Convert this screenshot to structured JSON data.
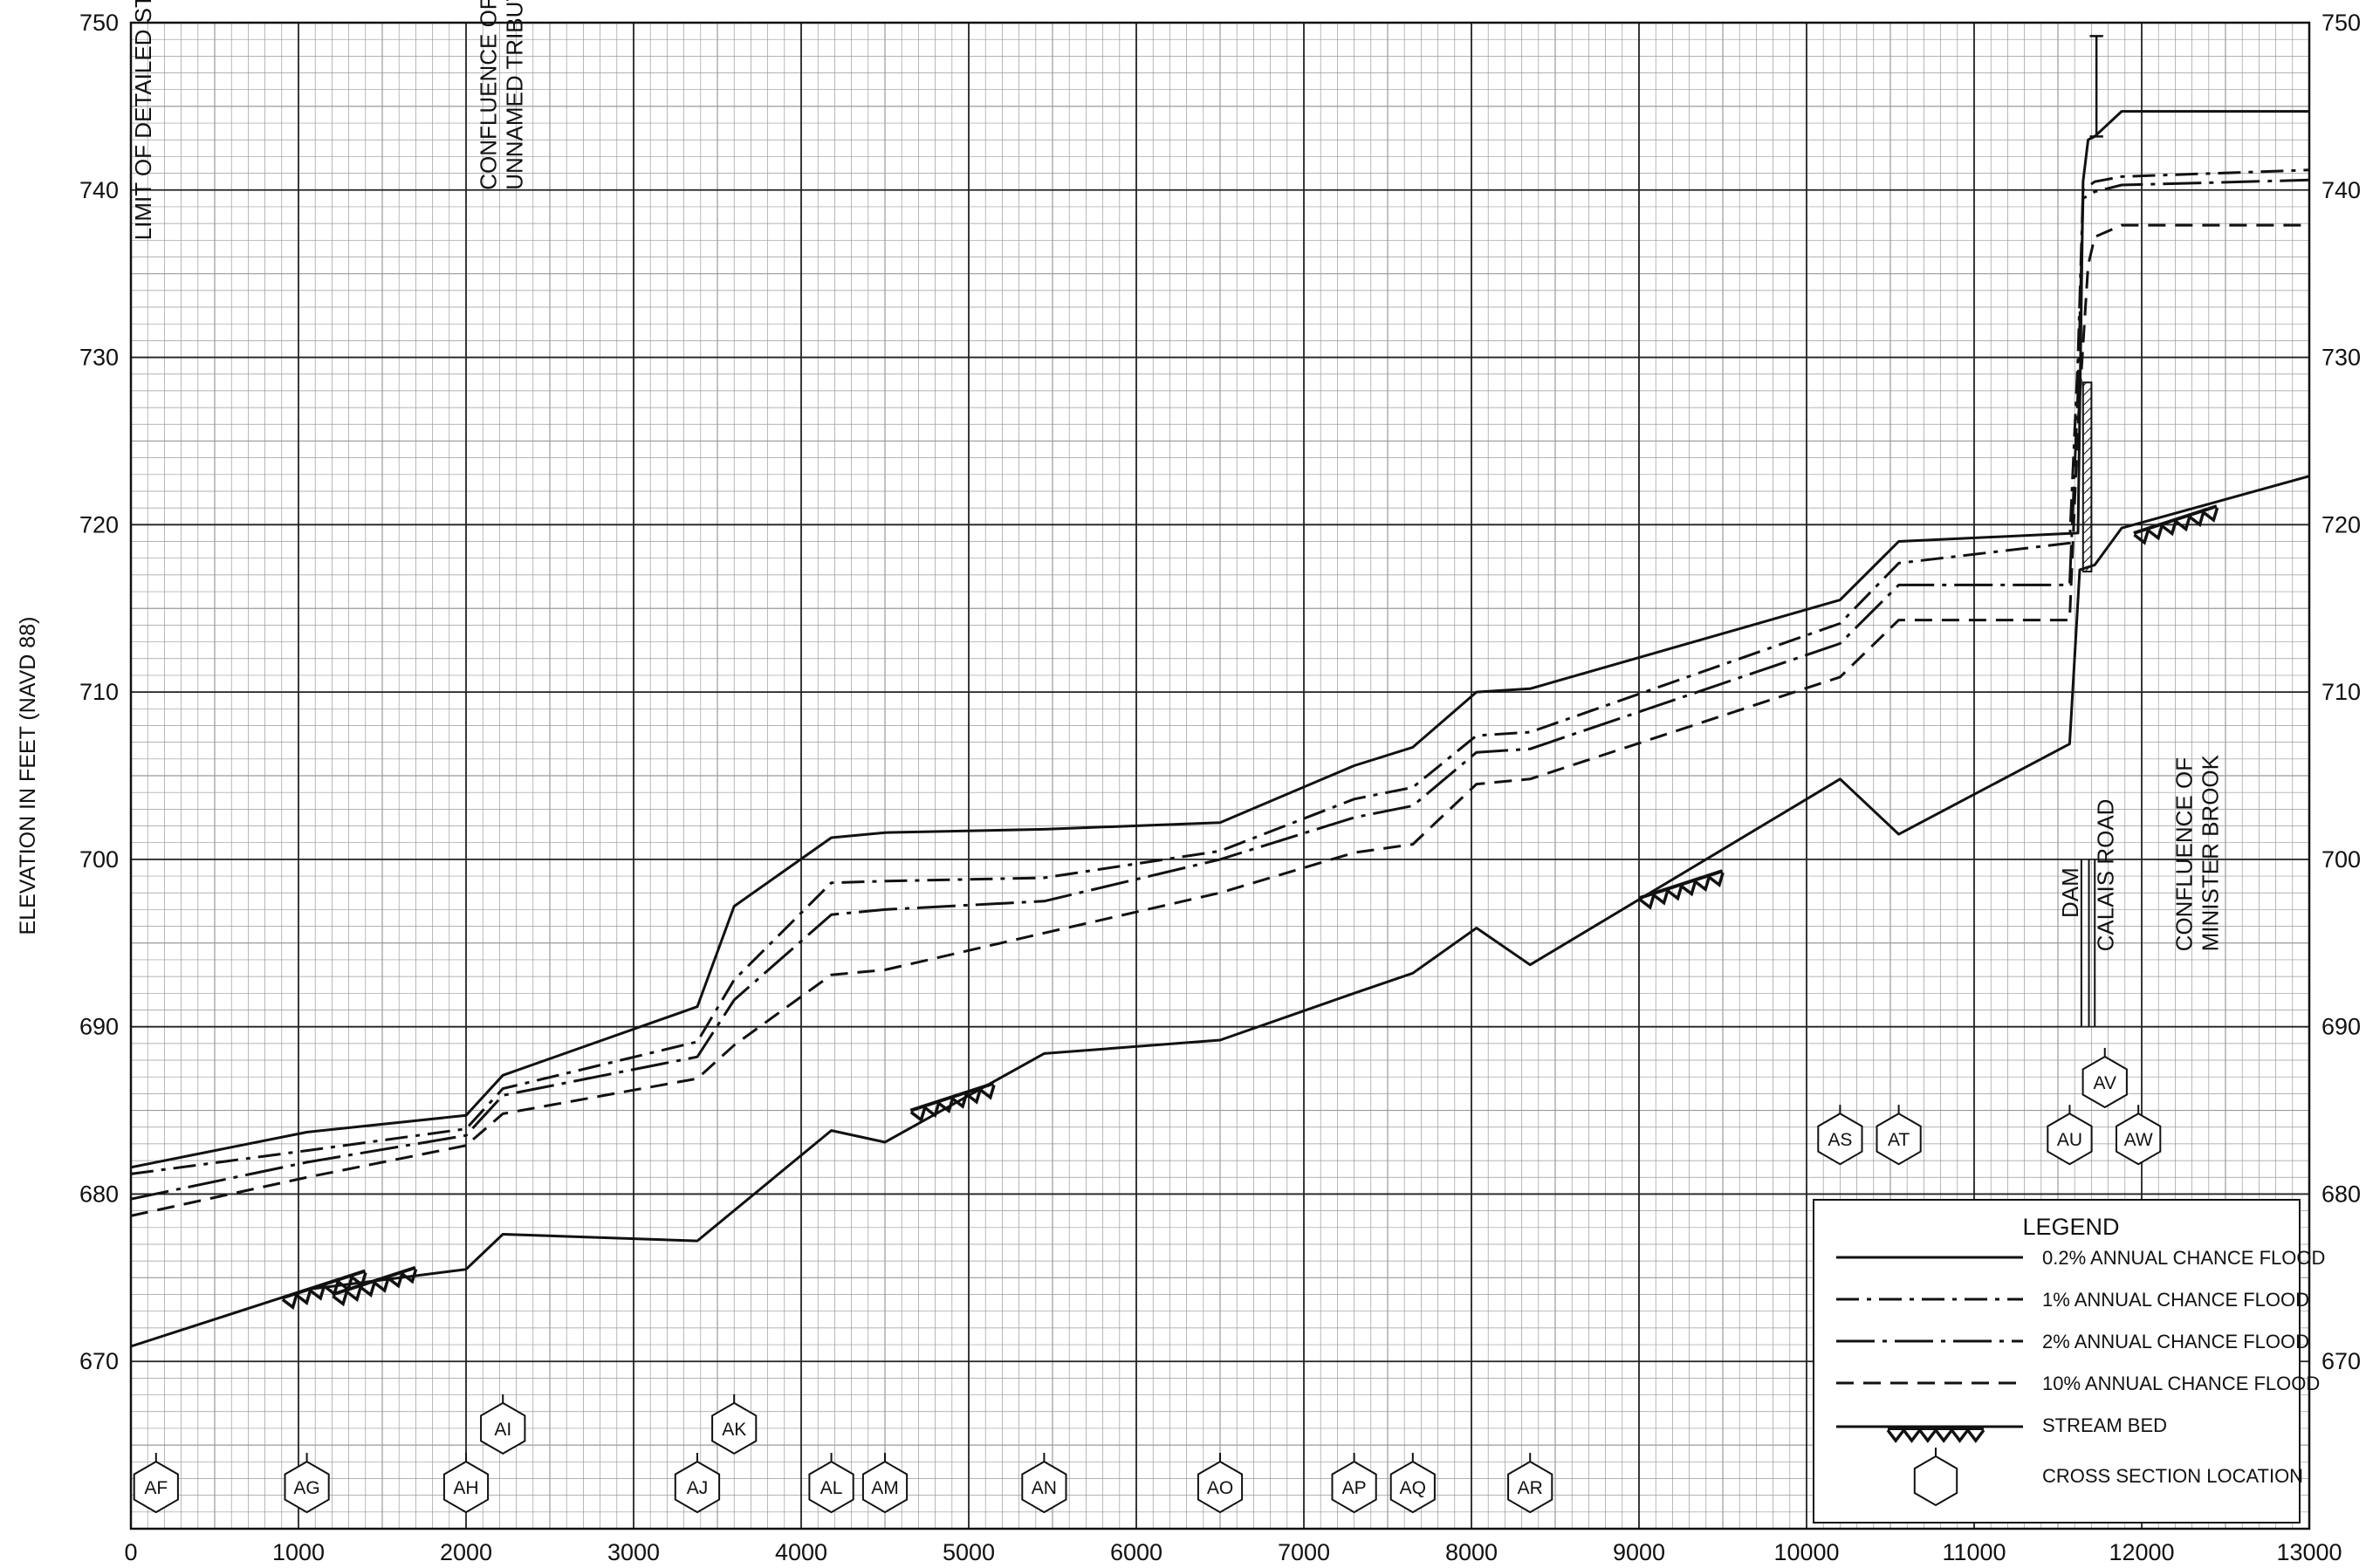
{
  "chart_data": {
    "type": "line",
    "ylabel": "ELEVATION IN FEET (NAVD 88)",
    "xlim": [
      0,
      13000
    ],
    "ylim": [
      660,
      750
    ],
    "x_ticks": [
      0,
      1000,
      2000,
      3000,
      4000,
      5000,
      6000,
      7000,
      8000,
      9000,
      10000,
      11000,
      12000,
      13000
    ],
    "y_ticks": [
      670,
      680,
      690,
      700,
      710,
      720,
      730,
      740,
      750
    ],
    "grid": true,
    "legend_position": "bottom-right",
    "legend": {
      "title": "LEGEND",
      "entries": [
        {
          "key": "p02",
          "label": "0.2% ANNUAL CHANCE FLOOD"
        },
        {
          "key": "p1",
          "label": "1% ANNUAL CHANCE FLOOD"
        },
        {
          "key": "p2",
          "label": "2% ANNUAL CHANCE FLOOD"
        },
        {
          "key": "p10",
          "label": "10% ANNUAL CHANCE FLOOD"
        },
        {
          "key": "bed",
          "label": "STREAM BED"
        },
        {
          "key": "xs",
          "label": "CROSS SECTION LOCATION"
        }
      ]
    },
    "series": [
      {
        "key": "p02",
        "name": "0.2% ANNUAL CHANCE FLOOD",
        "style": "solid",
        "x": [
          0,
          1050,
          2000,
          2220,
          3380,
          3600,
          4180,
          4500,
          5450,
          6500,
          7300,
          7650,
          8030,
          8350,
          10200,
          10550,
          11620,
          11650,
          11680,
          11720,
          11880,
          13000
        ],
        "y": [
          681.6,
          683.7,
          684.7,
          687.1,
          691.2,
          697.2,
          701.3,
          701.6,
          701.8,
          702.2,
          705.6,
          706.7,
          710.0,
          710.2,
          715.5,
          719.0,
          719.5,
          740.5,
          743.0,
          743.2,
          744.7,
          744.7
        ]
      },
      {
        "key": "p1",
        "name": "1% ANNUAL CHANCE FLOOD",
        "style": "dashdot",
        "x": [
          0,
          1050,
          2000,
          2220,
          3380,
          3600,
          4180,
          4500,
          5450,
          6500,
          7300,
          7650,
          8030,
          8350,
          10200,
          10550,
          11570,
          11620,
          11650,
          11720,
          11880,
          13000
        ],
        "y": [
          681.2,
          682.6,
          683.9,
          686.3,
          689.1,
          692.8,
          698.6,
          698.7,
          698.9,
          700.5,
          703.6,
          704.3,
          707.4,
          707.6,
          714.1,
          717.7,
          718.9,
          730.0,
          740.0,
          740.5,
          740.8,
          741.2
        ]
      },
      {
        "key": "p2",
        "name": "2% ANNUAL CHANCE FLOOD",
        "style": "longdashdot",
        "x": [
          0,
          1050,
          2000,
          2220,
          3380,
          3600,
          4180,
          4500,
          5450,
          6500,
          7300,
          7650,
          8030,
          8350,
          10200,
          10550,
          11570,
          11620,
          11650,
          11720,
          11880,
          13000
        ],
        "y": [
          679.7,
          681.9,
          683.5,
          685.9,
          688.2,
          691.6,
          696.7,
          697.0,
          697.5,
          700.0,
          702.5,
          703.2,
          706.4,
          706.6,
          712.9,
          716.4,
          716.4,
          728.0,
          739.5,
          739.9,
          740.3,
          740.6
        ]
      },
      {
        "key": "p10",
        "name": "10% ANNUAL CHANCE FLOOD",
        "style": "dashed",
        "x": [
          0,
          1050,
          2000,
          2220,
          3380,
          3600,
          4180,
          4500,
          5450,
          6500,
          7300,
          7650,
          8030,
          8350,
          10200,
          10550,
          11570,
          11620,
          11680,
          11720,
          11880,
          13000
        ],
        "y": [
          678.7,
          681.0,
          682.9,
          684.8,
          686.9,
          688.9,
          693.1,
          693.4,
          695.6,
          698.0,
          700.4,
          700.9,
          704.5,
          704.8,
          710.9,
          714.3,
          714.3,
          726.0,
          735.5,
          737.2,
          737.9,
          737.9
        ]
      },
      {
        "key": "bed",
        "name": "STREAM BED",
        "style": "solid",
        "x": [
          0,
          1050,
          2000,
          2220,
          3380,
          4180,
          4500,
          5450,
          6500,
          7300,
          7650,
          8030,
          8350,
          10200,
          10550,
          11570,
          11630,
          11720,
          11880,
          13000
        ],
        "y": [
          670.9,
          674.3,
          675.5,
          677.6,
          677.2,
          683.8,
          683.1,
          688.4,
          689.2,
          692.0,
          693.2,
          695.9,
          693.7,
          704.8,
          701.5,
          706.9,
          717.3,
          717.6,
          719.8,
          722.9
        ]
      }
    ],
    "stream_bed_hatches": [
      {
        "x": 1150,
        "y": 674.6
      },
      {
        "x": 1450,
        "y": 674.8
      },
      {
        "x": 4900,
        "y": 685.8
      },
      {
        "x": 9250,
        "y": 698.5
      },
      {
        "x": 12200,
        "y": 720.3
      }
    ],
    "cross_sections": [
      {
        "label": "AF",
        "x": 150,
        "y": 662.5
      },
      {
        "label": "AG",
        "x": 1050,
        "y": 662.5
      },
      {
        "label": "AH",
        "x": 2000,
        "y": 662.5
      },
      {
        "label": "AI",
        "x": 2220,
        "y": 666.0
      },
      {
        "label": "AJ",
        "x": 3380,
        "y": 662.5
      },
      {
        "label": "AK",
        "x": 3600,
        "y": 666.0
      },
      {
        "label": "AL",
        "x": 4180,
        "y": 662.5
      },
      {
        "label": "AM",
        "x": 4500,
        "y": 662.5
      },
      {
        "label": "AN",
        "x": 5450,
        "y": 662.5
      },
      {
        "label": "AO",
        "x": 6500,
        "y": 662.5
      },
      {
        "label": "AP",
        "x": 7300,
        "y": 662.5
      },
      {
        "label": "AQ",
        "x": 7650,
        "y": 662.5
      },
      {
        "label": "AR",
        "x": 8350,
        "y": 662.5
      },
      {
        "label": "AS",
        "x": 10200,
        "y": 683.3
      },
      {
        "label": "AT",
        "x": 10550,
        "y": 683.3
      },
      {
        "label": "AU",
        "x": 11570,
        "y": 683.3
      },
      {
        "label": "AV",
        "x": 11780,
        "y": 686.7
      },
      {
        "label": "AW",
        "x": 11980,
        "y": 683.3
      }
    ],
    "annotations": [
      {
        "lines": [
          "LIMIT OF DETAILED STUDY"
        ],
        "x": 120,
        "y": 737
      },
      {
        "lines": [
          "CONFLUENCE OF",
          "UNNAMED TRIBUTARY"
        ],
        "x": 2180,
        "y": 740
      },
      {
        "lines": [
          "DAM"
        ],
        "x": 11620,
        "y": 696.5
      },
      {
        "lines": [
          "CALAIS ROAD"
        ],
        "x": 11830,
        "y": 694.5
      },
      {
        "lines": [
          "CONFLUENCE OF",
          "MINISTER BROOK"
        ],
        "x": 12300,
        "y": 694.5
      }
    ]
  }
}
